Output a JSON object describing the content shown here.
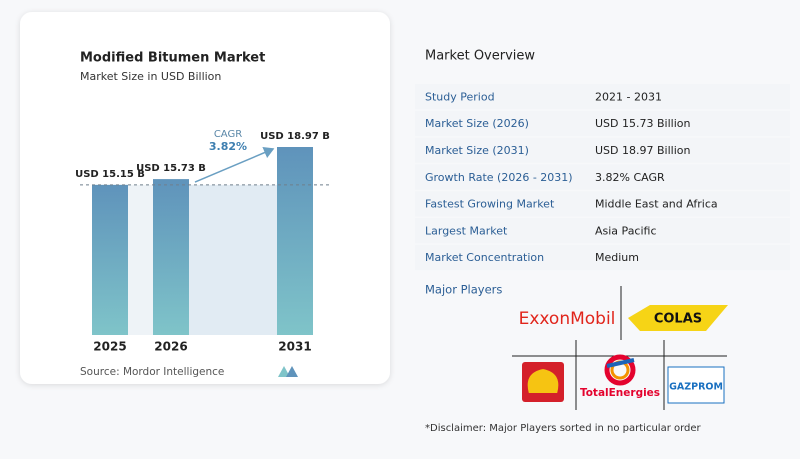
{
  "chart_data": {
    "type": "bar",
    "title": "Modified Bitumen Market",
    "subtitle": "Market Size in USD Billion",
    "categories": [
      "2025",
      "2026",
      "2031"
    ],
    "values": [
      15.15,
      15.73,
      18.97
    ],
    "value_labels": [
      "USD 15.15 B",
      "USD 15.73 B",
      "USD 18.97 B"
    ],
    "color": "#5f93bb",
    "annotations": {
      "cagr_label": "CAGR",
      "cagr_value": "3.82%"
    },
    "source": "Source:  Mordor Intelligence"
  },
  "overview": {
    "title": "Market Overview",
    "rows": [
      [
        "Study Period",
        "2021 - 2031"
      ],
      [
        "Market Size (2026)",
        "USD 15.73 Billion"
      ],
      [
        "Market Size (2031)",
        "USD 18.97 Billion"
      ],
      [
        "Growth Rate (2026 - 2031)",
        "3.82% CAGR"
      ],
      [
        "Fastest Growing Market",
        "Middle East and Africa"
      ],
      [
        "Largest Market",
        "Asia Pacific"
      ],
      [
        "Market Concentration",
        "Medium"
      ]
    ],
    "major_players_title": "Major Players",
    "players": [
      "ExxonMobil",
      "COLAS",
      "TotalEnergies",
      "GAZPROM"
    ],
    "disclaimer": "*Disclaimer: Major Players sorted in no particular order"
  }
}
